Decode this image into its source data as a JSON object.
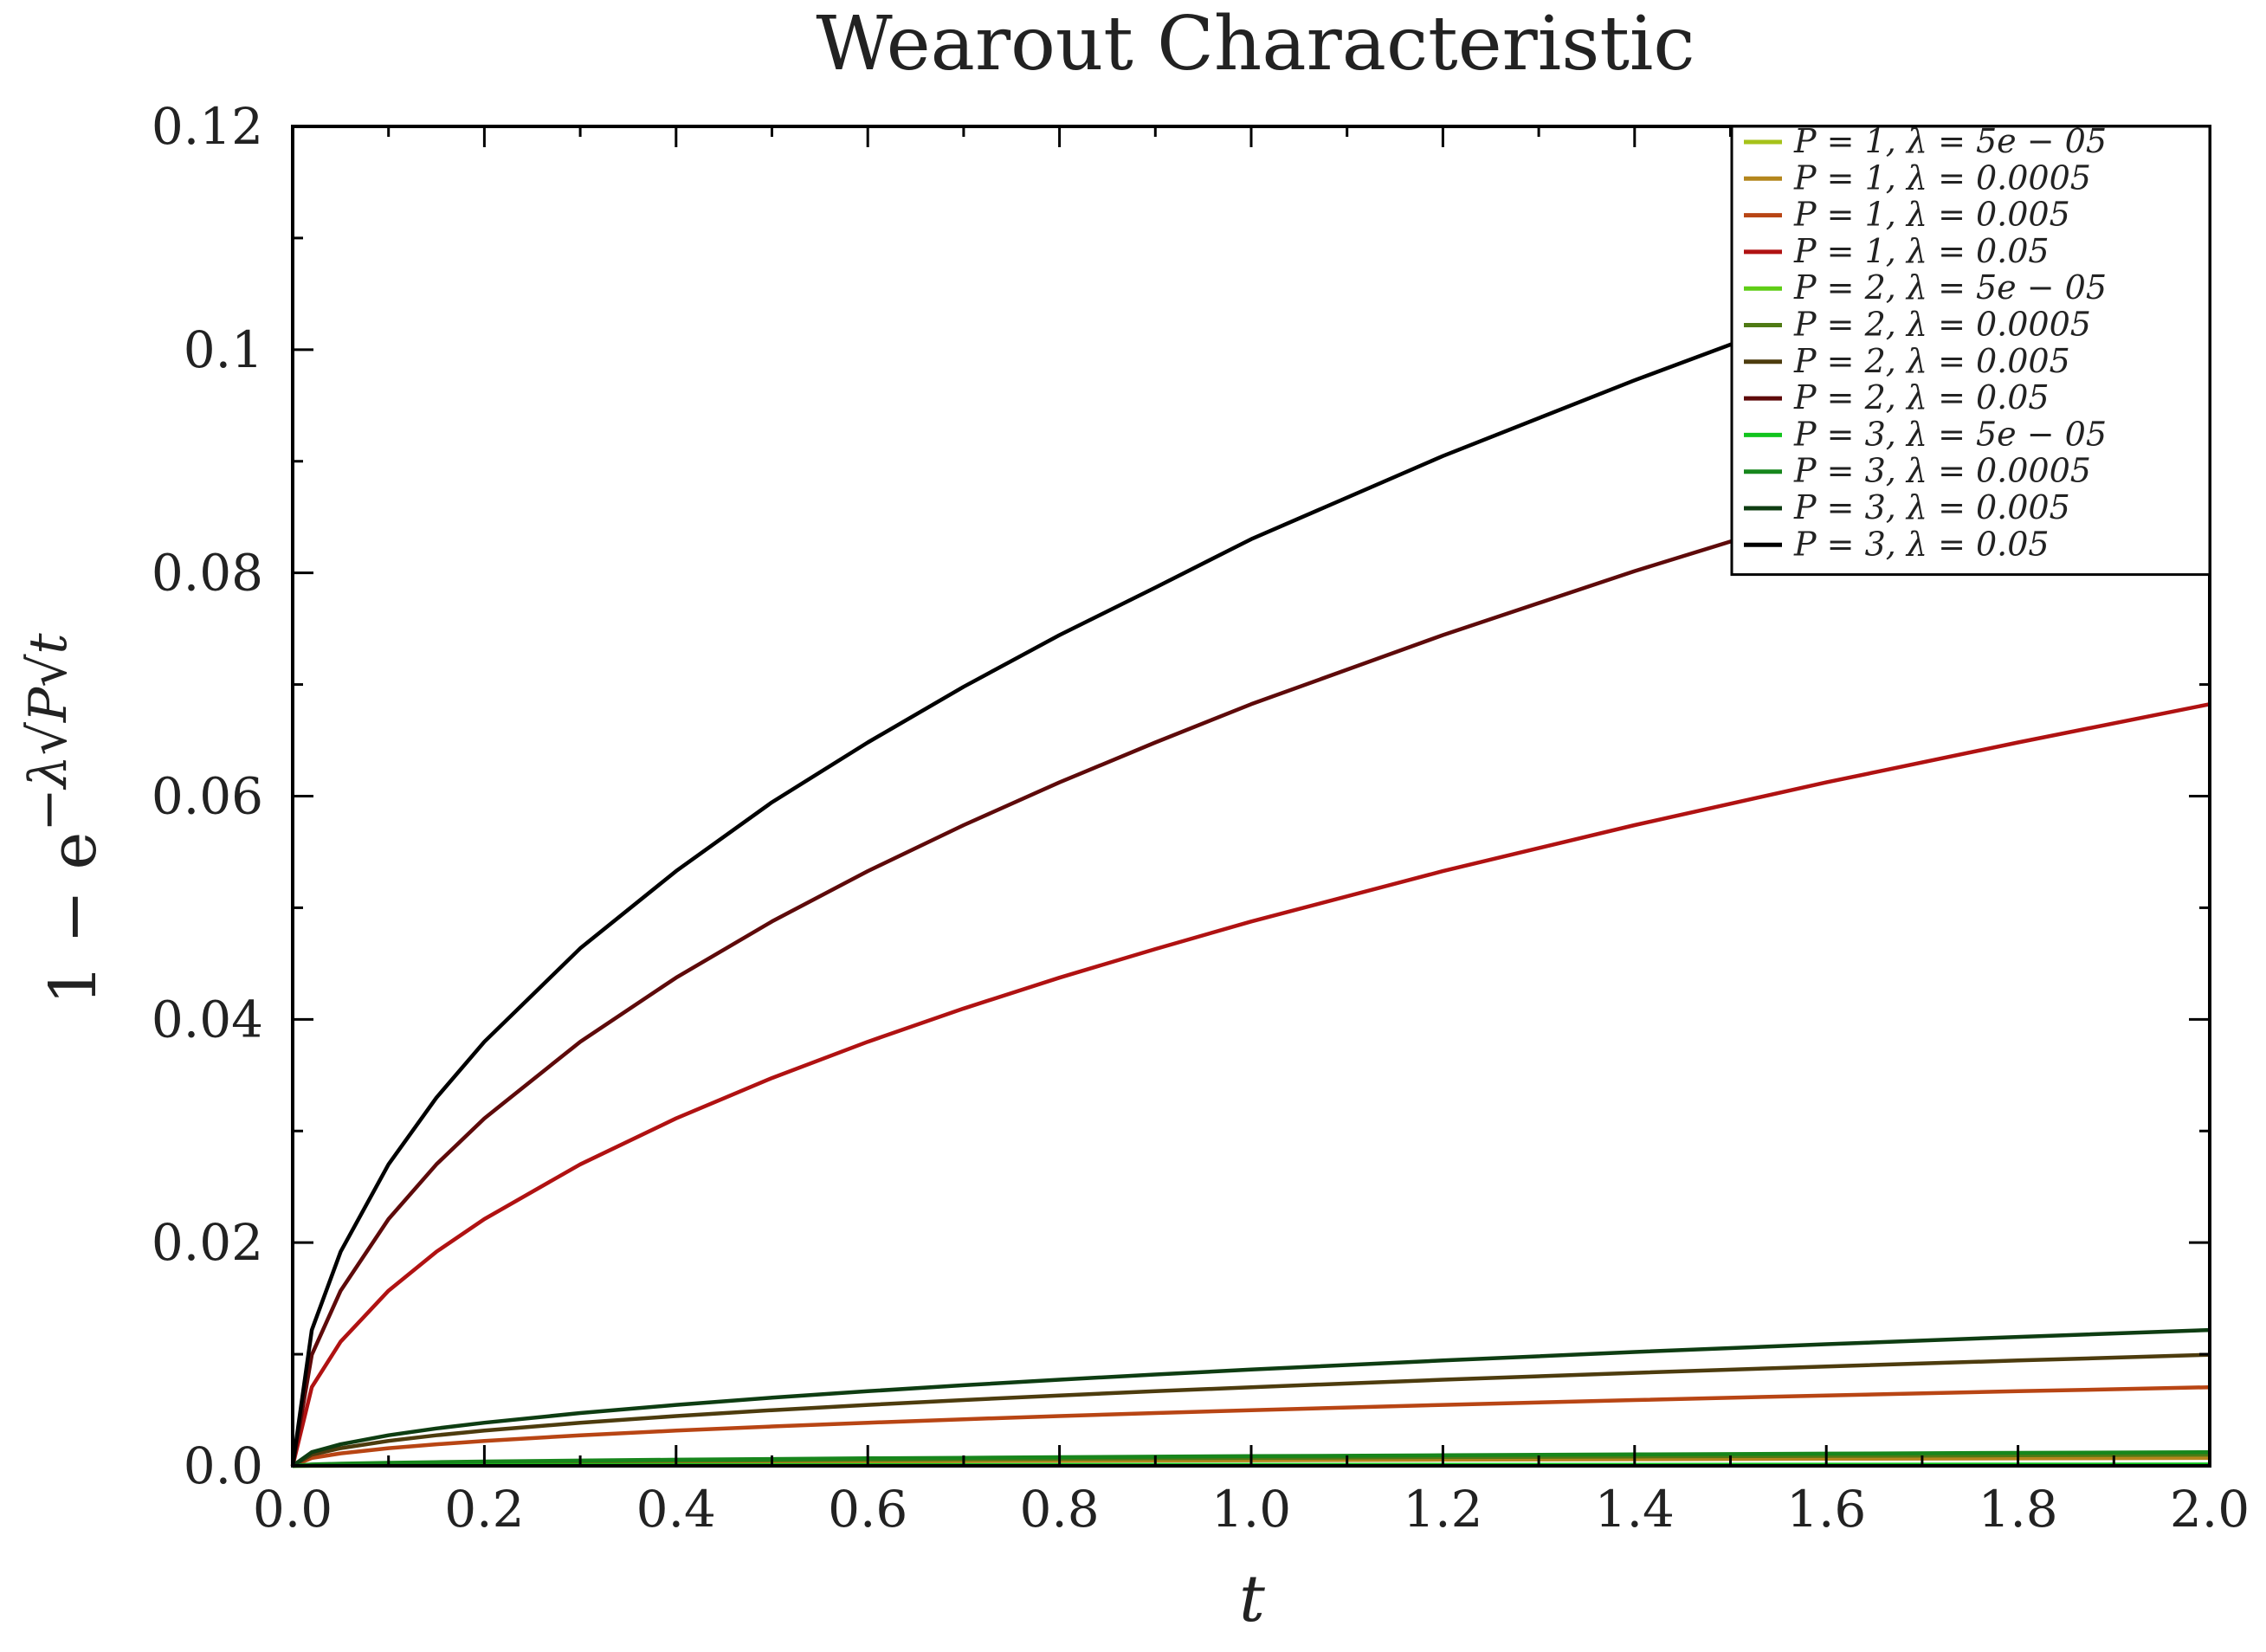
{
  "chart_data": {
    "type": "line",
    "title": "Wearout Characteristic",
    "xlabel": "t",
    "ylabel": "1 − e^{−λ√P√t}",
    "ylabel_parts": {
      "main": "1 − e",
      "exponent": "−λ√P√t"
    },
    "xlim": [
      0.0,
      2.0
    ],
    "ylim": [
      0.0,
      0.12
    ],
    "x_ticks": [
      0.0,
      0.2,
      0.4,
      0.6,
      0.8,
      1.0,
      1.2,
      1.4,
      1.6,
      1.8,
      2.0
    ],
    "x_tick_labels": [
      "0.0",
      "0.2",
      "0.4",
      "0.6",
      "0.8",
      "1.0",
      "1.2",
      "1.4",
      "1.6",
      "1.8",
      "2.0"
    ],
    "y_ticks": [
      0.0,
      0.02,
      0.04,
      0.06,
      0.08,
      0.1,
      0.12
    ],
    "y_tick_labels": [
      "0.0",
      "0.02",
      "0.04",
      "0.06",
      "0.08",
      "0.1",
      "0.12"
    ],
    "grid": false,
    "legend_position": "top-right",
    "x": [
      0.0,
      0.02,
      0.05,
      0.1,
      0.15,
      0.2,
      0.3,
      0.4,
      0.5,
      0.6,
      0.7,
      0.8,
      0.9,
      1.0,
      1.2,
      1.4,
      1.6,
      1.8,
      2.0
    ],
    "series": [
      {
        "name": "P = 1, λ = 5e − 05",
        "P": 1,
        "lambda": 5e-05,
        "color": "#a6c21a",
        "values": [
          0,
          7.1e-06,
          1.12e-05,
          1.58e-05,
          1.94e-05,
          2.24e-05,
          2.74e-05,
          3.16e-05,
          3.54e-05,
          3.87e-05,
          4.18e-05,
          4.47e-05,
          4.74e-05,
          5e-05,
          5.48e-05,
          5.92e-05,
          6.32e-05,
          6.71e-05,
          7.07e-05
        ]
      },
      {
        "name": "P = 1, λ = 0.0005",
        "P": 1,
        "lambda": 0.0005,
        "color": "#b4861d",
        "values": [
          0,
          7.07e-05,
          0.0001118,
          0.0001581,
          0.0001936,
          0.0002236,
          0.0002738,
          0.0003162,
          0.0003535,
          0.0003873,
          0.0004183,
          0.0004471,
          0.0004743,
          0.0005,
          0.0005476,
          0.0005915,
          0.0006323,
          0.0006706,
          0.0007069
        ]
      },
      {
        "name": "P = 1, λ = 0.005",
        "P": 1,
        "lambda": 0.005,
        "color": "#b84514",
        "values": [
          0,
          0.000707,
          0.001117,
          0.001579,
          0.001934,
          0.002233,
          0.002735,
          0.003157,
          0.00353,
          0.003866,
          0.004175,
          0.004462,
          0.004732,
          0.004988,
          0.005462,
          0.005898,
          0.006305,
          0.006687,
          0.007046
        ]
      },
      {
        "name": "P = 1, λ = 0.05",
        "P": 1,
        "lambda": 0.05,
        "color": "#b01212",
        "values": [
          0,
          0.00705,
          0.01112,
          0.01569,
          0.01918,
          0.02211,
          0.02701,
          0.03113,
          0.03474,
          0.03799,
          0.04097,
          0.04373,
          0.0463,
          0.04877,
          0.05328,
          0.0574,
          0.06123,
          0.06481,
          0.06824
        ]
      },
      {
        "name": "P = 2, λ = 5e − 05",
        "P": 2,
        "lambda": 5e-05,
        "color": "#5fcd16",
        "values": [
          0,
          1e-05,
          1.58e-05,
          2.24e-05,
          2.74e-05,
          3.16e-05,
          3.87e-05,
          4.47e-05,
          5e-05,
          5.48e-05,
          5.92e-05,
          6.32e-05,
          6.71e-05,
          7.07e-05,
          7.75e-05,
          8.37e-05,
          8.94e-05,
          9.49e-05,
          0.0001
        ]
      },
      {
        "name": "P = 2, λ = 0.0005",
        "P": 2,
        "lambda": 0.0005,
        "color": "#4f7a14",
        "values": [
          0,
          0.0001,
          0.000158,
          0.000224,
          0.000274,
          0.000316,
          0.000387,
          0.000447,
          0.0005,
          0.000548,
          0.000592,
          0.000632,
          0.000671,
          0.000707,
          0.000774,
          0.000836,
          0.000894,
          0.000948,
          0.000999
        ]
      },
      {
        "name": "P = 2, λ = 0.005",
        "P": 2,
        "lambda": 0.005,
        "color": "#4d3c0e",
        "values": [
          0,
          0.000999,
          0.00158,
          0.002234,
          0.002735,
          0.003157,
          0.003865,
          0.004462,
          0.004988,
          0.005462,
          0.005898,
          0.006305,
          0.006686,
          0.007046,
          0.007716,
          0.008333,
          0.008905,
          0.009443,
          0.00995
        ]
      },
      {
        "name": "P = 2, λ = 0.05",
        "P": 2,
        "lambda": 0.05,
        "color": "#5e0a0a",
        "values": [
          0,
          0.00995,
          0.01569,
          0.02211,
          0.02701,
          0.03113,
          0.03799,
          0.04373,
          0.04877,
          0.05328,
          0.0574,
          0.06123,
          0.06481,
          0.06824,
          0.07443,
          0.08016,
          0.08546,
          0.09047,
          0.09516
        ]
      },
      {
        "name": "P = 3, λ = 5e − 05",
        "P": 3,
        "lambda": 5e-05,
        "color": "#12c41e",
        "values": [
          0,
          1.22e-05,
          1.94e-05,
          2.74e-05,
          3.35e-05,
          3.87e-05,
          4.74e-05,
          5.48e-05,
          6.12e-05,
          6.71e-05,
          7.25e-05,
          7.75e-05,
          8.22e-05,
          8.66e-05,
          9.49e-05,
          0.0001025,
          0.0001095,
          0.0001162,
          0.0001225
        ]
      },
      {
        "name": "P = 3, λ = 0.0005",
        "P": 3,
        "lambda": 0.0005,
        "color": "#17861c",
        "values": [
          0,
          0.000122,
          0.000194,
          0.000274,
          0.000335,
          0.000387,
          0.000474,
          0.000548,
          0.000612,
          0.000671,
          0.000725,
          0.000775,
          0.000822,
          0.000866,
          0.000949,
          0.001025,
          0.001095,
          0.001162,
          0.001224
        ]
      },
      {
        "name": "P = 3, λ = 0.005",
        "P": 3,
        "lambda": 0.005,
        "color": "#0e3d12",
        "values": [
          0,
          0.001224,
          0.001935,
          0.002735,
          0.003349,
          0.003865,
          0.004733,
          0.005462,
          0.006105,
          0.006686,
          0.007219,
          0.007716,
          0.008183,
          0.008623,
          0.009443,
          0.010198,
          0.010897,
          0.011552,
          0.012173
        ]
      },
      {
        "name": "P = 3, λ = 0.05",
        "P": 3,
        "lambda": 0.05,
        "color": "#000000",
        "values": [
          0,
          0.01217,
          0.01918,
          0.02701,
          0.03298,
          0.03799,
          0.04636,
          0.05328,
          0.05945,
          0.06481,
          0.0698,
          0.07443,
          0.07869,
          0.08302,
          0.09047,
          0.09726,
          0.10365,
          0.10955,
          0.11514
        ]
      }
    ]
  }
}
